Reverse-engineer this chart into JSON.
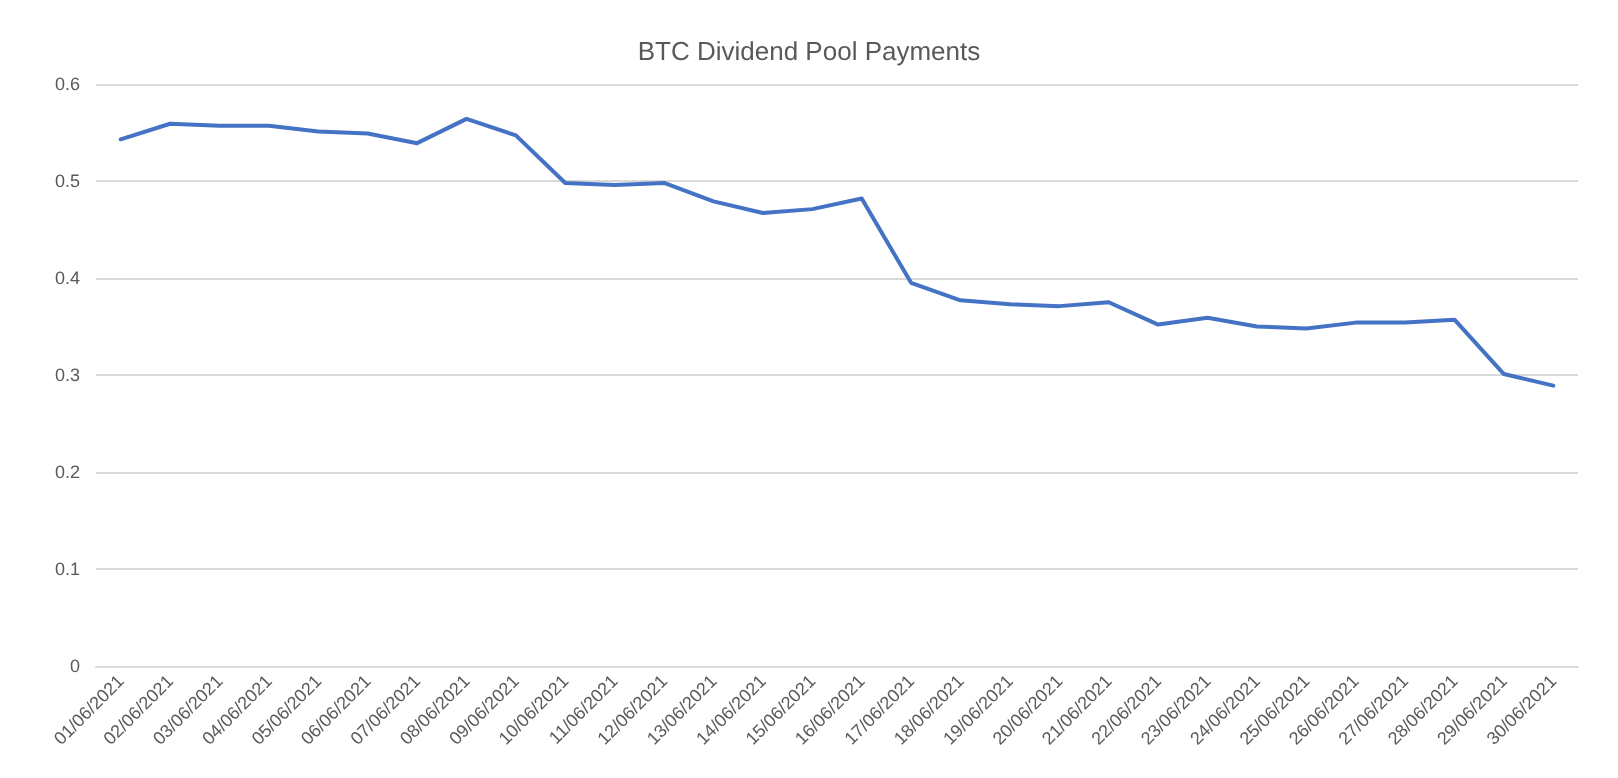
{
  "chart_data": {
    "type": "line",
    "title": "BTC Dividend Pool Payments",
    "categories": [
      "01/06/2021",
      "02/06/2021",
      "03/06/2021",
      "04/06/2021",
      "05/06/2021",
      "06/06/2021",
      "07/06/2021",
      "08/06/2021",
      "09/06/2021",
      "10/06/2021",
      "11/06/2021",
      "12/06/2021",
      "13/06/2021",
      "14/06/2021",
      "15/06/2021",
      "16/06/2021",
      "17/06/2021",
      "18/06/2021",
      "19/06/2021",
      "20/06/2021",
      "21/06/2021",
      "22/06/2021",
      "23/06/2021",
      "24/06/2021",
      "25/06/2021",
      "26/06/2021",
      "27/06/2021",
      "28/06/2021",
      "29/06/2021",
      "30/06/2021"
    ],
    "series": [
      {
        "color": "#4472c4",
        "values": [
          0.543,
          0.559,
          0.557,
          0.557,
          0.551,
          0.549,
          0.539,
          0.564,
          0.547,
          0.498,
          0.496,
          0.498,
          0.479,
          0.467,
          0.471,
          0.482,
          0.395,
          0.377,
          0.373,
          0.371,
          0.375,
          0.352,
          0.359,
          0.35,
          0.348,
          0.354,
          0.354,
          0.357,
          0.301,
          0.289
        ]
      }
    ],
    "ylim": [
      0,
      0.6
    ],
    "yticks": [
      0,
      0.1,
      0.2,
      0.3,
      0.4,
      0.5,
      0.6
    ],
    "grid": "y",
    "marker": "none",
    "line_style": "solid"
  }
}
